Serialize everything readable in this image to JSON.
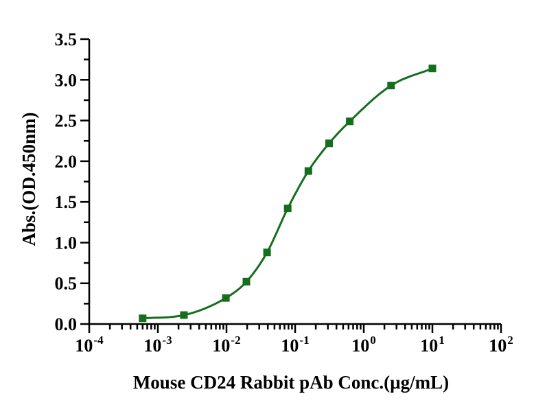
{
  "figure": {
    "background_color": "#ffffff",
    "text_color": "#000000",
    "axis_color": "#000000"
  },
  "chart_data": {
    "type": "scatter",
    "title": "",
    "xlabel": "Mouse CD24 Rabbit pAb Conc.(µg/mL)",
    "ylabel": "Abs.(OD.450nm)",
    "x_scale": "log10",
    "xlim": [
      0.0001,
      100
    ],
    "ylim": [
      0,
      3.5
    ],
    "x_tick_exponents": [
      -4,
      -3,
      -2,
      -1,
      0,
      1,
      2
    ],
    "x_tick_base": "10",
    "y_tick_labels": [
      "0.0",
      "0.5",
      "1.0",
      "1.5",
      "2.0",
      "2.5",
      "3.0",
      "3.5"
    ],
    "y_major_step": 0.5,
    "y_minor_step": 0.25,
    "grid": false,
    "legend": false,
    "series": [
      {
        "marker": "square",
        "color": "#146e1c",
        "curve": "sigmoid-fit",
        "x": [
          0.0006,
          0.0024,
          0.0098,
          0.0195,
          0.039,
          0.078,
          0.156,
          0.3125,
          0.625,
          2.5,
          10
        ],
        "y": [
          0.07,
          0.11,
          0.32,
          0.52,
          0.88,
          1.42,
          1.88,
          2.22,
          2.49,
          2.93,
          3.14
        ]
      }
    ]
  }
}
